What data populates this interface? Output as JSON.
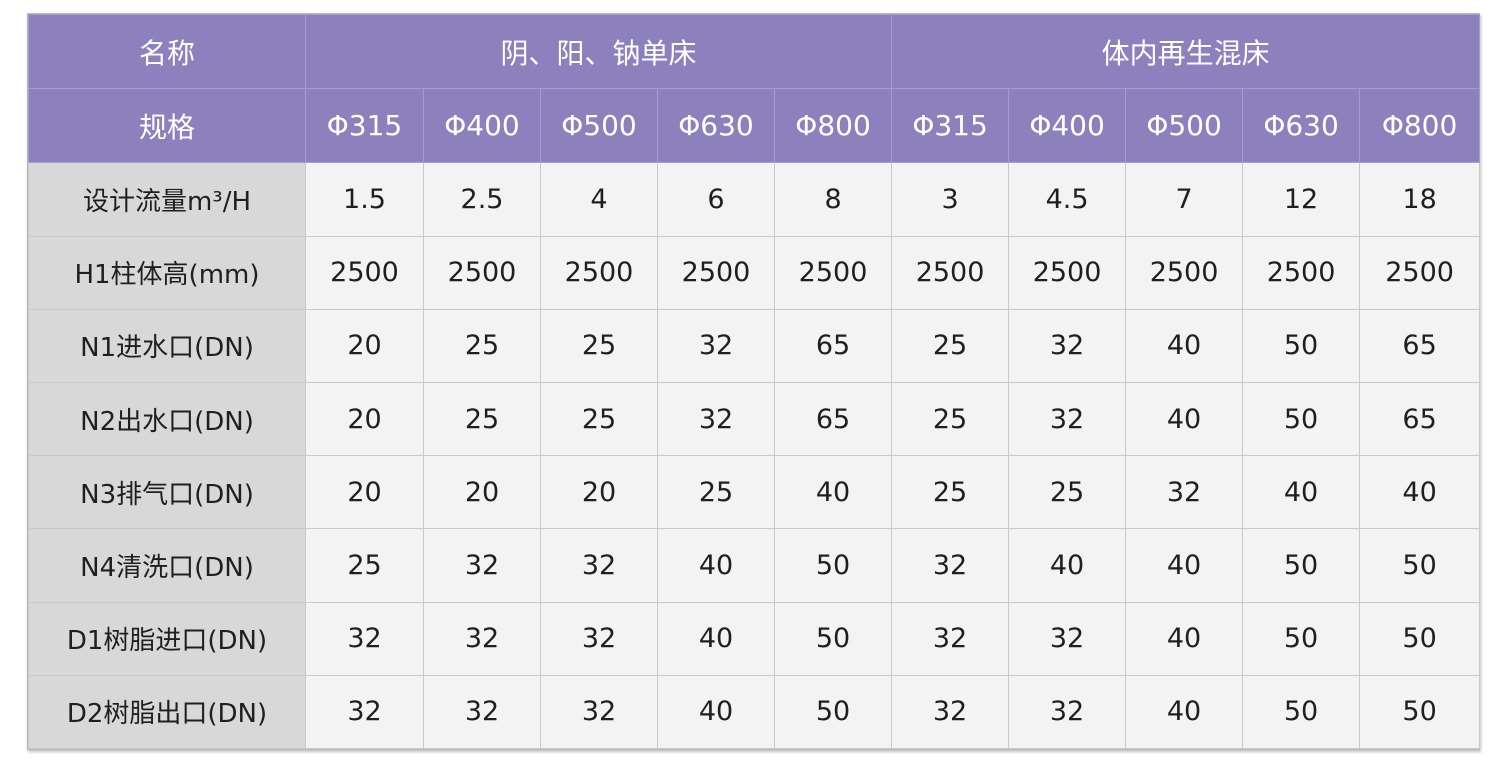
{
  "header": {
    "name_label": "名称",
    "group1_label": "阴、阳、钠单床",
    "group2_label": "体内再生混床",
    "spec_label": "规格",
    "sizes": [
      "Φ315",
      "Φ400",
      "Φ500",
      "Φ630",
      "Φ800",
      "Φ315",
      "Φ400",
      "Φ500",
      "Φ630",
      "Φ800"
    ]
  },
  "rows": [
    {
      "label": "设计流量m³/H",
      "values": [
        "1.5",
        "2.5",
        "4",
        "6",
        "8",
        "3",
        "4.5",
        "7",
        "12",
        "18"
      ]
    },
    {
      "label": "H1柱体高(mm)",
      "values": [
        "2500",
        "2500",
        "2500",
        "2500",
        "2500",
        "2500",
        "2500",
        "2500",
        "2500",
        "2500"
      ]
    },
    {
      "label": "N1进水口(DN)",
      "values": [
        "20",
        "25",
        "25",
        "32",
        "65",
        "25",
        "32",
        "40",
        "50",
        "65"
      ]
    },
    {
      "label": "N2出水口(DN)",
      "values": [
        "20",
        "25",
        "25",
        "32",
        "65",
        "25",
        "32",
        "40",
        "50",
        "65"
      ]
    },
    {
      "label": "N3排气口(DN)",
      "values": [
        "20",
        "20",
        "20",
        "25",
        "40",
        "25",
        "25",
        "32",
        "40",
        "40"
      ]
    },
    {
      "label": "N4清洗口(DN)",
      "values": [
        "25",
        "32",
        "32",
        "40",
        "50",
        "32",
        "40",
        "40",
        "50",
        "50"
      ]
    },
    {
      "label": "D1树脂进口(DN)",
      "values": [
        "32",
        "32",
        "32",
        "40",
        "50",
        "32",
        "32",
        "40",
        "50",
        "50"
      ]
    },
    {
      "label": "D2树脂出口(DN)",
      "values": [
        "32",
        "32",
        "32",
        "40",
        "50",
        "32",
        "32",
        "40",
        "50",
        "50"
      ]
    }
  ],
  "colors": {
    "header_bg": "#8c80bd",
    "label_bg": "#d8d8d8",
    "cell_bg": "#f3f3f3"
  }
}
